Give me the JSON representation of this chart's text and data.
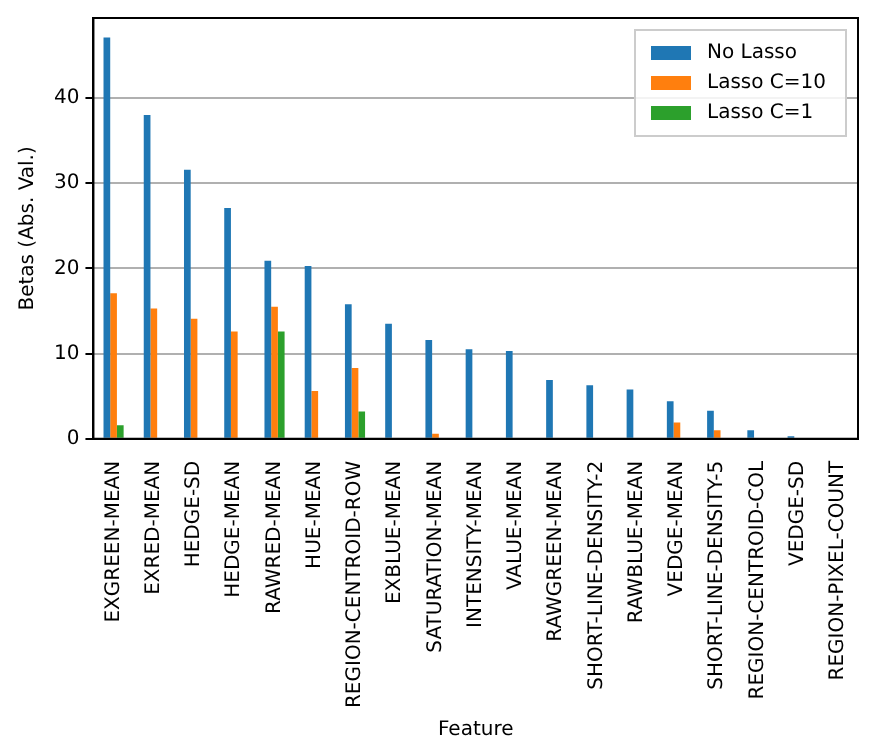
{
  "chart_data": {
    "type": "bar",
    "xlabel": "Feature",
    "ylabel": "Betas (Abs. Val.)",
    "categories": [
      "EXGREEN-MEAN",
      "EXRED-MEAN",
      "HEDGE-SD",
      "HEDGE-MEAN",
      "RAWRED-MEAN",
      "HUE-MEAN",
      "REGION-CENTROID-ROW",
      "EXBLUE-MEAN",
      "SATURATION-MEAN",
      "INTENSITY-MEAN",
      "VALUE-MEAN",
      "RAWGREEN-MEAN",
      "SHORT-LINE-DENSITY-2",
      "RAWBLUE-MEAN",
      "VEDGE-MEAN",
      "SHORT-LINE-DENSITY-5",
      "REGION-CENTROID-COL",
      "VEDGE-SD",
      "REGION-PIXEL-COUNT"
    ],
    "series": [
      {
        "name": "No Lasso",
        "color": "#1f77b4",
        "values": [
          47.1,
          38.0,
          31.6,
          27.1,
          20.9,
          20.3,
          15.8,
          13.5,
          11.6,
          10.5,
          10.3,
          6.9,
          6.3,
          5.8,
          4.4,
          3.3,
          1.0,
          0.3,
          0
        ]
      },
      {
        "name": "Lasso C=10",
        "color": "#ff7f0e",
        "values": [
          17.1,
          15.3,
          14.1,
          12.6,
          15.5,
          5.6,
          8.3,
          0,
          0.6,
          0,
          0,
          0,
          0,
          0,
          1.9,
          1.0,
          0,
          0,
          0
        ]
      },
      {
        "name": "Lasso C=1",
        "color": "#2ca02c",
        "values": [
          1.6,
          0,
          0,
          0,
          12.6,
          0,
          3.2,
          0,
          0,
          0,
          0,
          0,
          0,
          0,
          0,
          0,
          0,
          0,
          0
        ]
      }
    ],
    "ylim": [
      0,
      49.4
    ],
    "yticks": [
      0,
      10,
      20,
      30,
      40
    ],
    "grid": "y",
    "legend": "top right"
  }
}
